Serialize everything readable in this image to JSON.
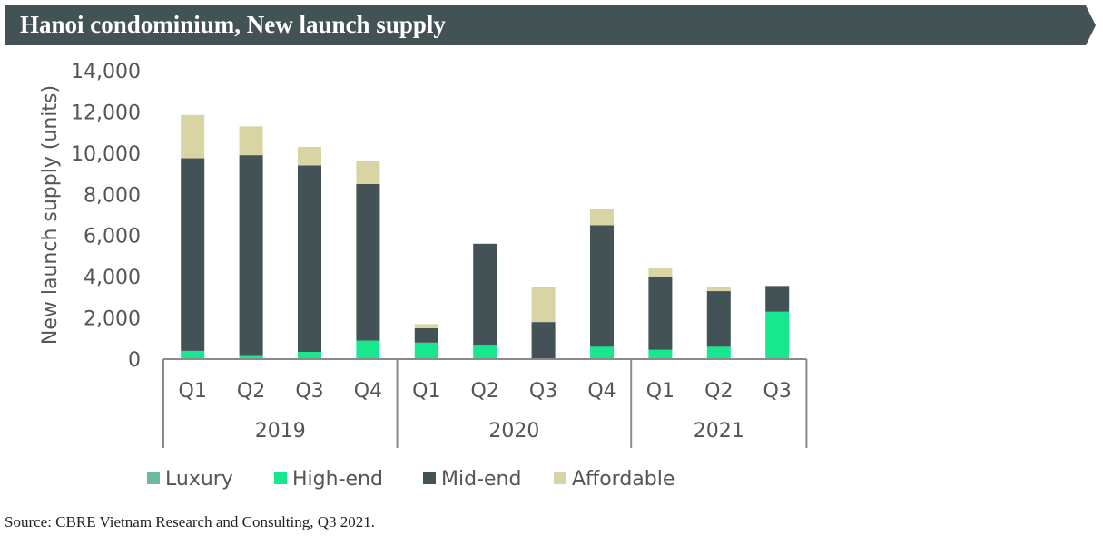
{
  "banner": {
    "title": "Hanoi condominium, New launch supply"
  },
  "source": "Source: CBRE Vietnam Research and Consulting, Q3 2021.",
  "chart_data": {
    "type": "bar",
    "stacked": true,
    "title": "Hanoi condominium, New launch supply",
    "xlabel": "",
    "ylabel": "New launch supply (units)",
    "ylim": [
      0,
      14000
    ],
    "yticks": [
      0,
      2000,
      4000,
      6000,
      8000,
      10000,
      12000,
      14000
    ],
    "ytick_labels": [
      "0",
      "2,000",
      "4,000",
      "6,000",
      "8,000",
      "10,000",
      "12,000",
      "14,000"
    ],
    "categories": [
      "Q1",
      "Q2",
      "Q3",
      "Q4",
      "Q1",
      "Q2",
      "Q3",
      "Q4",
      "Q1",
      "Q2",
      "Q3"
    ],
    "groups": [
      {
        "label": "2019",
        "count": 4
      },
      {
        "label": "2020",
        "count": 4
      },
      {
        "label": "2021",
        "count": 3
      }
    ],
    "series": [
      {
        "name": "Luxury",
        "color": "#6fb8a4",
        "values": [
          0,
          0,
          0,
          0,
          0,
          0,
          0,
          0,
          0,
          0,
          0
        ]
      },
      {
        "name": "High-end",
        "color": "#17e88f",
        "values": [
          400,
          150,
          350,
          900,
          800,
          650,
          0,
          600,
          450,
          600,
          2300
        ]
      },
      {
        "name": "Mid-end",
        "color": "#435254",
        "values": [
          9350,
          9750,
          9050,
          7600,
          700,
          4950,
          1800,
          5900,
          3550,
          2700,
          1250
        ]
      },
      {
        "name": "Affordable",
        "color": "#d9d4a4",
        "values": [
          2100,
          1400,
          900,
          1100,
          200,
          0,
          1700,
          800,
          400,
          200,
          0
        ]
      }
    ],
    "legend_position": "bottom",
    "grid": false
  }
}
